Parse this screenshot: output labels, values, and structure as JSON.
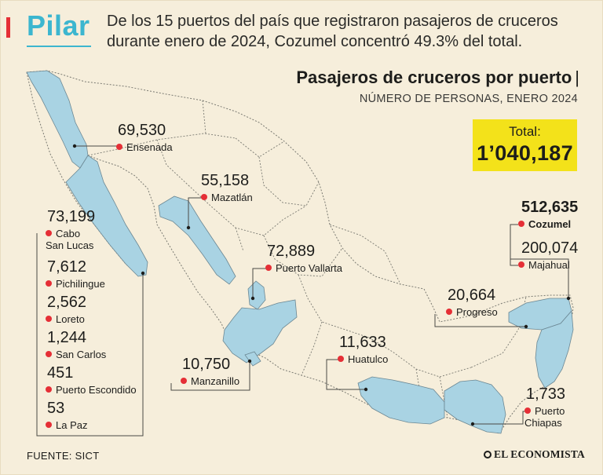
{
  "header": {
    "brand": "Pilar",
    "intro": "De los 15 puertos del país que registraron pasajeros de cruceros durante enero de 2024, Cozumel concentró 49.3% del total."
  },
  "chart": {
    "title": "Pasajeros de cruceros por puerto",
    "title_bar": "|",
    "subtitle": "NÚMERO DE PERSONAS, ENERO 2024",
    "total_label": "Total:",
    "total_value": "1’040,187"
  },
  "ports": [
    {
      "value": "69,530",
      "name": "Ensenada"
    },
    {
      "value": "55,158",
      "name": "Mazatlán"
    },
    {
      "value": "73,199",
      "name": "Cabo\nSan Lucas"
    },
    {
      "value": "7,612",
      "name": "Pichilingue"
    },
    {
      "value": "2,562",
      "name": "Loreto"
    },
    {
      "value": "1,244",
      "name": "San Carlos"
    },
    {
      "value": "451",
      "name": "Puerto Escondido"
    },
    {
      "value": "53",
      "name": "La Paz"
    },
    {
      "value": "72,889",
      "name": "Puerto Vallarta"
    },
    {
      "value": "10,750",
      "name": "Manzanillo"
    },
    {
      "value": "11,633",
      "name": "Huatulco"
    },
    {
      "value": "512,635",
      "name": "Cozumel"
    },
    {
      "value": "200,074",
      "name": "Majahual"
    },
    {
      "value": "20,664",
      "name": "Progreso"
    },
    {
      "value": "1,733",
      "name": "Puerto\nChiapas"
    }
  ],
  "chart_data": {
    "type": "table",
    "title": "Pasajeros de cruceros por puerto",
    "subtitle": "NÚMERO DE PERSONAS, ENERO 2024",
    "categories": [
      "Ensenada",
      "Mazatlán",
      "Cabo San Lucas",
      "Pichilingue",
      "Loreto",
      "San Carlos",
      "Puerto Escondido",
      "La Paz",
      "Puerto Vallarta",
      "Manzanillo",
      "Huatulco",
      "Cozumel",
      "Majahual",
      "Progreso",
      "Puerto Chiapas"
    ],
    "values": [
      69530,
      55158,
      73199,
      7612,
      2562,
      1244,
      451,
      53,
      72889,
      10750,
      11633,
      512635,
      200074,
      20664,
      1733
    ],
    "total": 1040187
  },
  "colors": {
    "highlight_state": "#a9d3e3",
    "accent_red": "#e52f36",
    "brand_cyan": "#3cb6cf",
    "total_yellow": "#f3e21a",
    "background": "#f6eedb"
  },
  "footer": {
    "source": "FUENTE: SICT",
    "publisher": "EL ECONOMISTA"
  }
}
